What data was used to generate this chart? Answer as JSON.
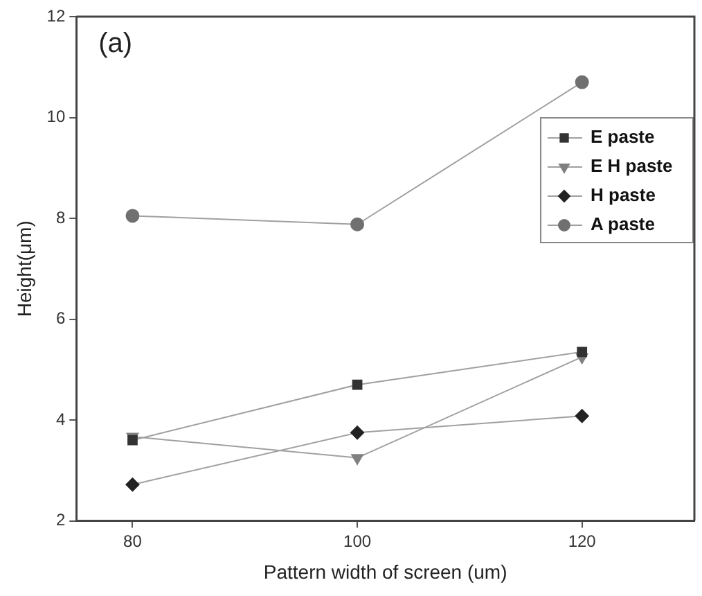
{
  "chart_data": {
    "type": "line",
    "xlabel": "Pattern width of screen (um)",
    "ylabel": "Height(μm)",
    "annotations": [
      "(a)"
    ],
    "x": [
      80,
      100,
      120
    ],
    "series": [
      {
        "name": "E paste",
        "color": "#333333",
        "marker": "square",
        "values": [
          3.6,
          4.7,
          5.35
        ]
      },
      {
        "name": "E H paste",
        "color": "#808080",
        "marker": "triangle",
        "values": [
          3.67,
          3.25,
          5.25
        ]
      },
      {
        "name": "H paste",
        "color": "#222222",
        "marker": "diamond",
        "values": [
          2.72,
          3.75,
          4.08
        ]
      },
      {
        "name": "A paste",
        "color": "#707070",
        "marker": "circle",
        "values": [
          8.05,
          7.88,
          10.7
        ]
      }
    ],
    "xlim": [
      75,
      130
    ],
    "xticks": [
      80,
      100,
      120
    ],
    "ylim": [
      2,
      12
    ],
    "yticks": [
      2,
      4,
      6,
      8,
      10,
      12
    ],
    "grid": false,
    "legend": "top right",
    "line_style": "solid"
  }
}
